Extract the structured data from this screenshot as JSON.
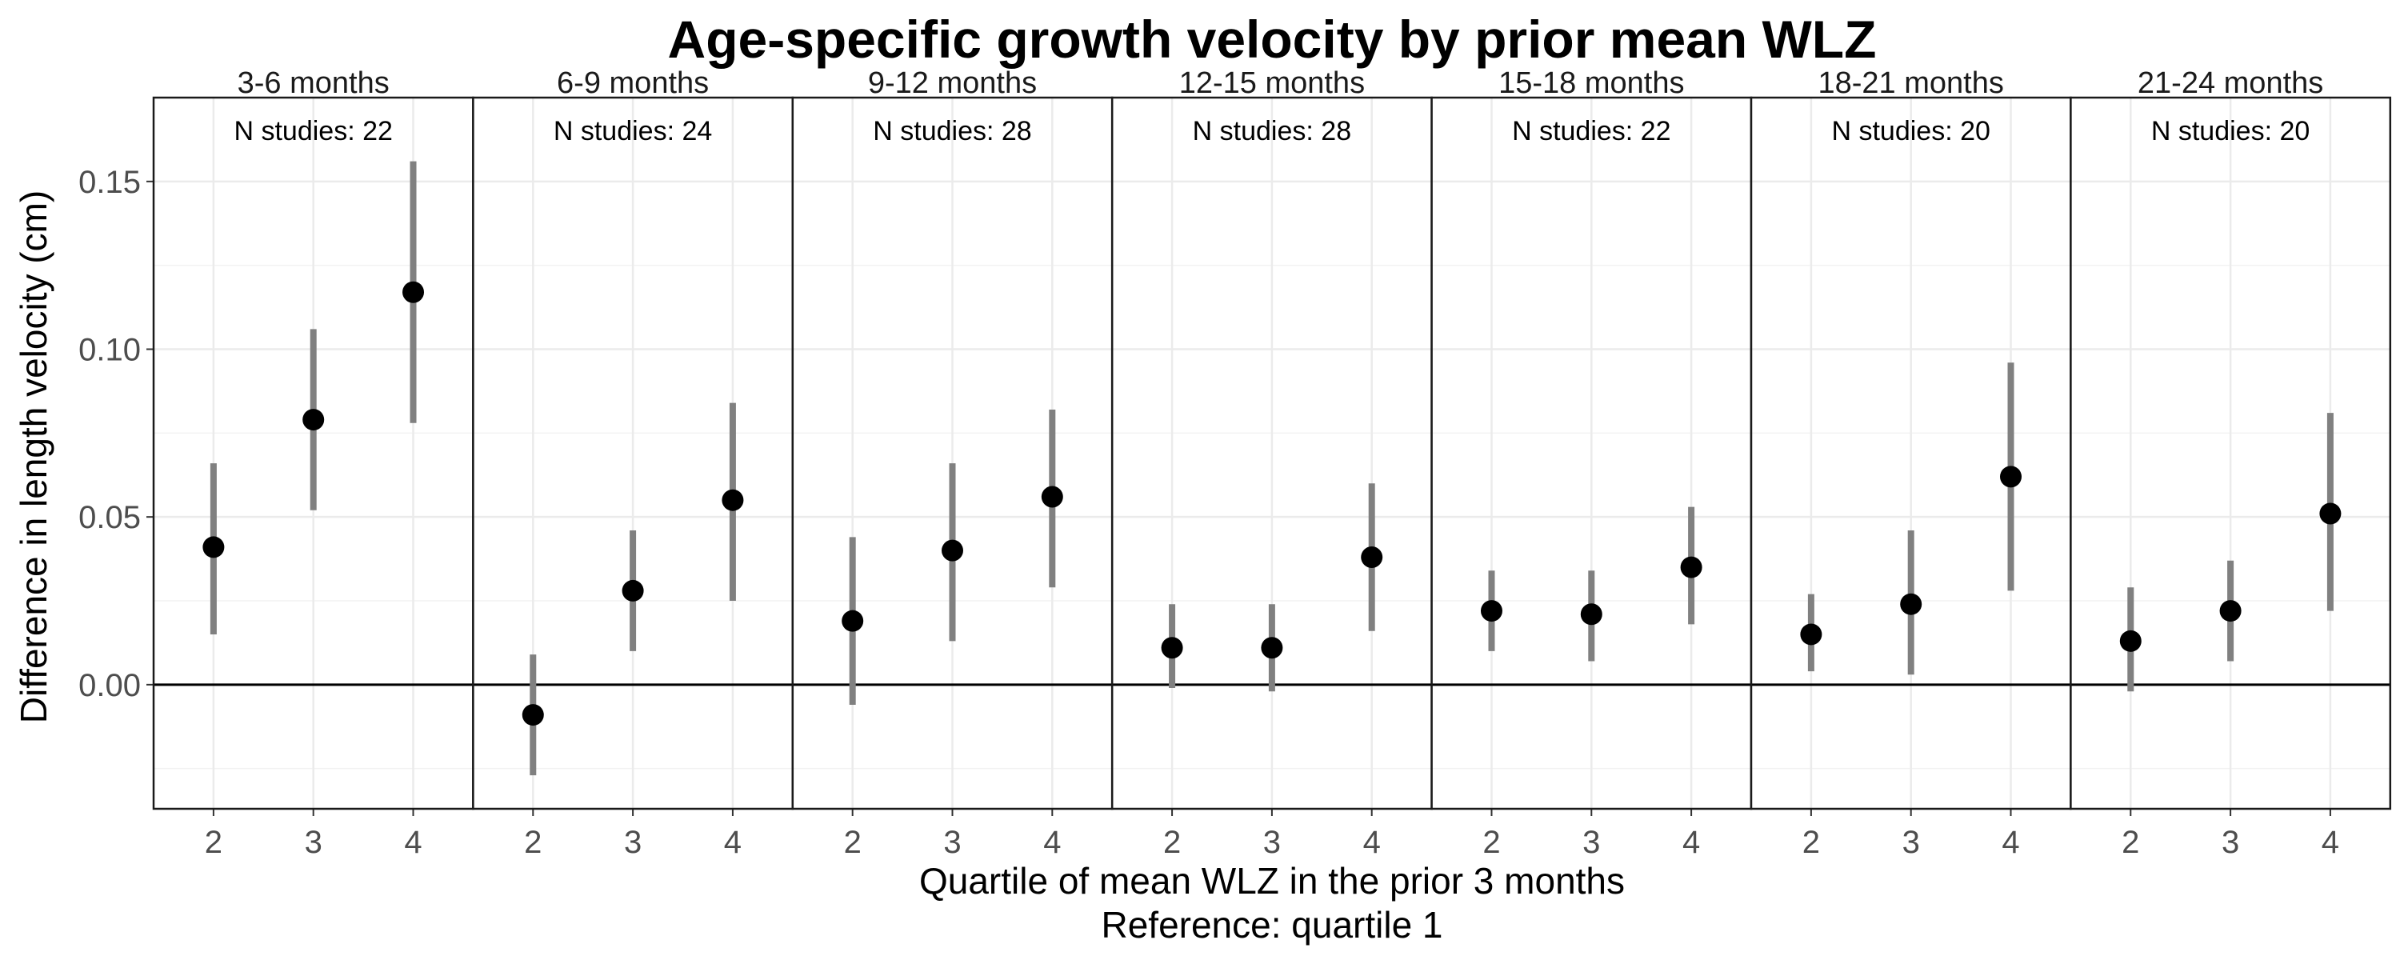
{
  "chart_data": {
    "type": "scatter",
    "title": "Age-specific growth velocity by prior mean WLZ",
    "xlabel": "Quartile of mean WLZ in the prior 3 months",
    "xlabel_sub": "Reference: quartile 1",
    "ylabel": "Difference in length velocity (cm)",
    "ylim": [
      -0.037,
      0.175
    ],
    "yticks": [
      0.0,
      0.05,
      0.1,
      0.15
    ],
    "ytick_labels": [
      "0.00",
      "0.05",
      "0.10",
      "0.15"
    ],
    "x_categories": [
      "2",
      "3",
      "4"
    ],
    "reference_line_y": 0,
    "grid": true,
    "point_color": "#000000",
    "errorbar_color": "#808080",
    "panels": [
      {
        "label": "3-6 months",
        "n_label": "N studies: 22",
        "points": [
          {
            "x": "2",
            "y": 0.041,
            "lo": 0.015,
            "hi": 0.066
          },
          {
            "x": "3",
            "y": 0.079,
            "lo": 0.052,
            "hi": 0.106
          },
          {
            "x": "4",
            "y": 0.117,
            "lo": 0.078,
            "hi": 0.156
          }
        ]
      },
      {
        "label": "6-9 months",
        "n_label": "N studies: 24",
        "points": [
          {
            "x": "2",
            "y": -0.009,
            "lo": -0.027,
            "hi": 0.009
          },
          {
            "x": "3",
            "y": 0.028,
            "lo": 0.01,
            "hi": 0.046
          },
          {
            "x": "4",
            "y": 0.055,
            "lo": 0.025,
            "hi": 0.084
          }
        ]
      },
      {
        "label": "9-12 months",
        "n_label": "N studies: 28",
        "points": [
          {
            "x": "2",
            "y": 0.019,
            "lo": -0.006,
            "hi": 0.044
          },
          {
            "x": "3",
            "y": 0.04,
            "lo": 0.013,
            "hi": 0.066
          },
          {
            "x": "4",
            "y": 0.056,
            "lo": 0.029,
            "hi": 0.082
          }
        ]
      },
      {
        "label": "12-15 months",
        "n_label": "N studies: 28",
        "points": [
          {
            "x": "2",
            "y": 0.011,
            "lo": -0.001,
            "hi": 0.024
          },
          {
            "x": "3",
            "y": 0.011,
            "lo": -0.002,
            "hi": 0.024
          },
          {
            "x": "4",
            "y": 0.038,
            "lo": 0.016,
            "hi": 0.06
          }
        ]
      },
      {
        "label": "15-18 months",
        "n_label": "N studies: 22",
        "points": [
          {
            "x": "2",
            "y": 0.022,
            "lo": 0.01,
            "hi": 0.034
          },
          {
            "x": "3",
            "y": 0.021,
            "lo": 0.007,
            "hi": 0.034
          },
          {
            "x": "4",
            "y": 0.035,
            "lo": 0.018,
            "hi": 0.053
          }
        ]
      },
      {
        "label": "18-21 months",
        "n_label": "N studies: 20",
        "points": [
          {
            "x": "2",
            "y": 0.015,
            "lo": 0.004,
            "hi": 0.027
          },
          {
            "x": "3",
            "y": 0.024,
            "lo": 0.003,
            "hi": 0.046
          },
          {
            "x": "4",
            "y": 0.062,
            "lo": 0.028,
            "hi": 0.096
          }
        ]
      },
      {
        "label": "21-24 months",
        "n_label": "N studies: 20",
        "points": [
          {
            "x": "2",
            "y": 0.013,
            "lo": -0.002,
            "hi": 0.029
          },
          {
            "x": "3",
            "y": 0.022,
            "lo": 0.007,
            "hi": 0.037
          },
          {
            "x": "4",
            "y": 0.051,
            "lo": 0.022,
            "hi": 0.081
          }
        ]
      }
    ]
  }
}
